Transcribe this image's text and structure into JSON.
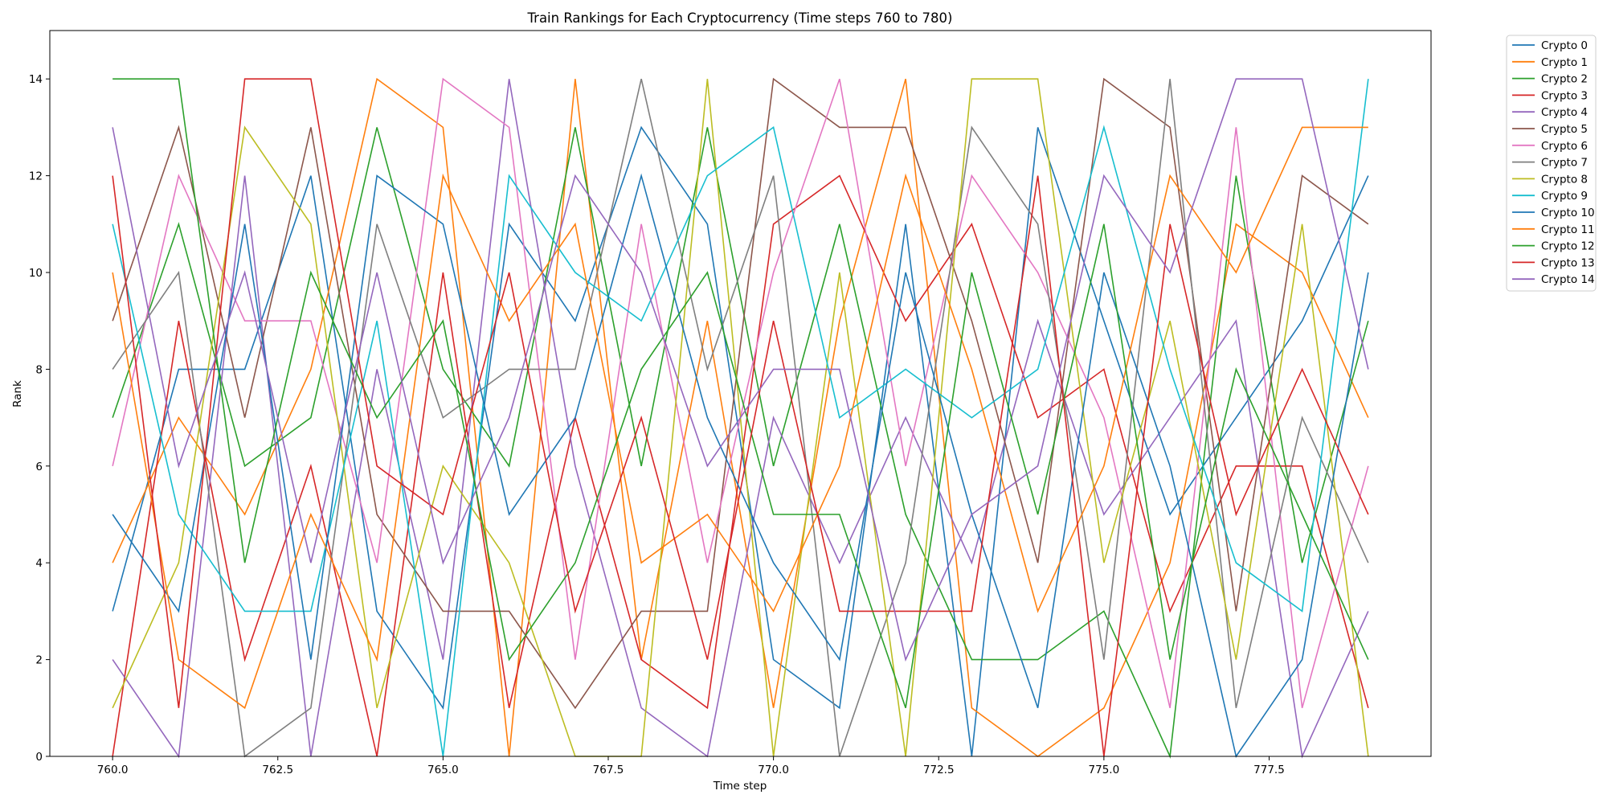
{
  "chart_data": {
    "type": "line",
    "title": "Train Rankings for Each Cryptocurrency (Time steps 760 to 780)",
    "xlabel": "Time step",
    "ylabel": "Rank",
    "xlim": [
      759.05,
      779.95
    ],
    "ylim": [
      0,
      15
    ],
    "xticks": [
      760.0,
      762.5,
      765.0,
      767.5,
      770.0,
      772.5,
      775.0,
      777.5
    ],
    "xtick_labels": [
      "760.0",
      "762.5",
      "765.0",
      "767.5",
      "770.0",
      "772.5",
      "775.0",
      "777.5"
    ],
    "yticks": [
      0,
      2,
      4,
      6,
      8,
      10,
      12,
      14
    ],
    "ytick_labels": [
      "0",
      "2",
      "4",
      "6",
      "8",
      "10",
      "12",
      "14"
    ],
    "grid": false,
    "legend_position": "outside-top-right",
    "x": [
      760,
      761,
      762,
      763,
      764,
      765,
      766,
      767,
      768,
      769,
      770,
      771,
      772,
      773,
      774,
      775,
      776,
      777,
      778,
      779
    ],
    "series": [
      {
        "name": "Crypto 0",
        "color": "#1f77b4",
        "values": [
          3,
          8,
          8,
          12,
          3,
          1,
          11,
          9,
          13,
          11,
          2,
          1,
          11,
          0,
          13,
          9,
          5,
          7,
          9,
          12
        ]
      },
      {
        "name": "Crypto 1",
        "color": "#ff7f0e",
        "values": [
          4,
          7,
          5,
          8,
          14,
          13,
          0,
          14,
          2,
          9,
          1,
          9,
          14,
          1,
          0,
          1,
          4,
          11,
          10,
          7
        ]
      },
      {
        "name": "Crypto 2",
        "color": "#2ca02c",
        "values": [
          7,
          11,
          6,
          7,
          13,
          8,
          6,
          13,
          6,
          13,
          6,
          11,
          5,
          2,
          2,
          3,
          0,
          12,
          4,
          9
        ]
      },
      {
        "name": "Crypto 3",
        "color": "#d62728",
        "values": [
          0,
          9,
          2,
          6,
          0,
          10,
          1,
          7,
          2,
          1,
          11,
          12,
          9,
          11,
          7,
          8,
          3,
          6,
          6,
          1
        ]
      },
      {
        "name": "Crypto 4",
        "color": "#9467bd",
        "values": [
          2,
          0,
          12,
          0,
          8,
          2,
          14,
          6,
          1,
          0,
          7,
          4,
          7,
          4,
          9,
          5,
          7,
          9,
          0,
          3
        ]
      },
      {
        "name": "Crypto 5",
        "color": "#8c564b",
        "values": [
          9,
          13,
          7,
          13,
          5,
          3,
          3,
          1,
          3,
          3,
          14,
          13,
          13,
          9,
          4,
          14,
          13,
          3,
          12,
          11
        ]
      },
      {
        "name": "Crypto 6",
        "color": "#e377c2",
        "values": [
          6,
          12,
          9,
          9,
          4,
          14,
          13,
          2,
          11,
          4,
          10,
          14,
          6,
          12,
          10,
          7,
          1,
          13,
          1,
          6
        ]
      },
      {
        "name": "Crypto 7",
        "color": "#7f7f7f",
        "values": [
          8,
          10,
          0,
          1,
          11,
          7,
          8,
          8,
          14,
          8,
          12,
          0,
          4,
          13,
          11,
          2,
          14,
          1,
          7,
          4
        ]
      },
      {
        "name": "Crypto 8",
        "color": "#bcbd22",
        "values": [
          1,
          4,
          13,
          11,
          1,
          6,
          4,
          0,
          0,
          14,
          0,
          10,
          0,
          14,
          14,
          4,
          9,
          2,
          11,
          0
        ]
      },
      {
        "name": "Crypto 9",
        "color": "#17becf",
        "values": [
          11,
          5,
          3,
          3,
          9,
          0,
          12,
          10,
          9,
          12,
          13,
          7,
          8,
          7,
          8,
          13,
          8,
          4,
          3,
          14
        ]
      },
      {
        "name": "Crypto 10",
        "color": "#1f77b4",
        "values": [
          5,
          3,
          11,
          2,
          12,
          11,
          5,
          7,
          12,
          7,
          4,
          2,
          10,
          5,
          1,
          10,
          6,
          0,
          2,
          10
        ]
      },
      {
        "name": "Crypto 11",
        "color": "#ff7f0e",
        "values": [
          10,
          2,
          1,
          5,
          2,
          12,
          9,
          11,
          4,
          5,
          3,
          6,
          12,
          8,
          3,
          6,
          12,
          10,
          13,
          13
        ]
      },
      {
        "name": "Crypto 12",
        "color": "#2ca02c",
        "values": [
          14,
          14,
          4,
          10,
          7,
          9,
          2,
          4,
          8,
          10,
          5,
          5,
          1,
          10,
          5,
          11,
          2,
          8,
          5,
          2
        ]
      },
      {
        "name": "Crypto 13",
        "color": "#d62728",
        "values": [
          12,
          1,
          14,
          14,
          6,
          5,
          10,
          3,
          7,
          2,
          9,
          3,
          3,
          3,
          12,
          0,
          11,
          5,
          8,
          5
        ]
      },
      {
        "name": "Crypto 14",
        "color": "#9467bd",
        "values": [
          13,
          6,
          10,
          4,
          10,
          4,
          7,
          12,
          10,
          6,
          8,
          8,
          2,
          5,
          6,
          12,
          10,
          14,
          14,
          8
        ]
      }
    ]
  }
}
